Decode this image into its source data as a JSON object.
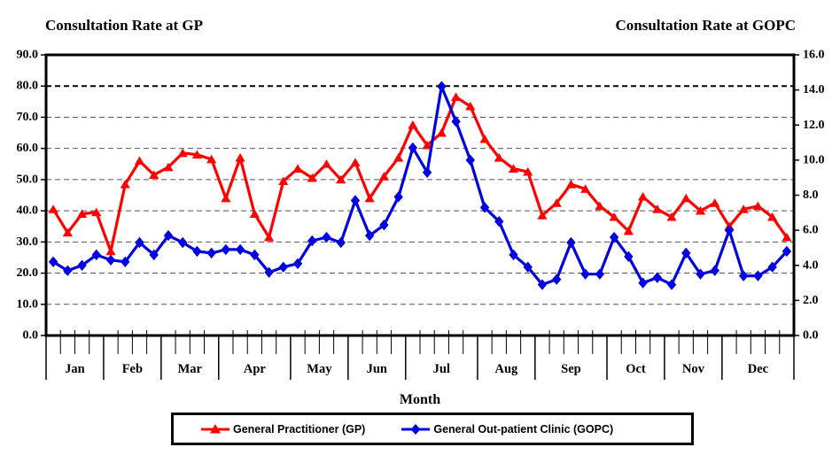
{
  "chart_data": {
    "type": "line",
    "title_left": "Consultation Rate at GP",
    "title_right": "Consultation Rate at GOPC",
    "xlabel": "Month",
    "x_unit": "week",
    "months": [
      {
        "label": "Jan",
        "weeks": 4
      },
      {
        "label": "Feb",
        "weeks": 4
      },
      {
        "label": "Mar",
        "weeks": 4
      },
      {
        "label": "Apr",
        "weeks": 5
      },
      {
        "label": "May",
        "weeks": 4
      },
      {
        "label": "Jun",
        "weeks": 4
      },
      {
        "label": "Jul",
        "weeks": 5
      },
      {
        "label": "Aug",
        "weeks": 4
      },
      {
        "label": "Sep",
        "weeks": 5
      },
      {
        "label": "Oct",
        "weeks": 4
      },
      {
        "label": "Nov",
        "weeks": 4
      },
      {
        "label": "Dec",
        "weeks": 5
      }
    ],
    "left_axis": {
      "min": 0,
      "max": 90,
      "step": 10,
      "tick_labels": [
        "0.0",
        "10.0",
        "20.0",
        "30.0",
        "40.0",
        "50.0",
        "60.0",
        "70.0",
        "80.0",
        "90.0"
      ]
    },
    "right_axis": {
      "min": 0,
      "max": 16,
      "step": 2,
      "tick_labels": [
        "0.0",
        "2.0",
        "4.0",
        "6.0",
        "8.0",
        "10.0",
        "12.0",
        "14.0",
        "16.0"
      ]
    },
    "gridlines": {
      "values": [
        10,
        20,
        30,
        40,
        50,
        60,
        70,
        80
      ],
      "emphasized": 80,
      "color": "#555555",
      "emphasized_color": "#000000"
    },
    "frame_color": "#000000",
    "legend_position": "bottom",
    "series": [
      {
        "name": "General Practitioner (GP)",
        "axis": "left",
        "color": "#FF0000",
        "marker": "triangle",
        "values": [
          40.5,
          33,
          39,
          39.5,
          27,
          48.5,
          56,
          51.5,
          54,
          58.5,
          58,
          56.5,
          44,
          57,
          39,
          31.5,
          49.5,
          53.5,
          50.5,
          55,
          50,
          55.5,
          44,
          51,
          57,
          67.5,
          61,
          65,
          76.5,
          73.5,
          63,
          57,
          53.5,
          52.5,
          38.5,
          42.5,
          48.5,
          47,
          41.5,
          38,
          33.5,
          44.5,
          40.5,
          38,
          44,
          40,
          42.5,
          35,
          40.5,
          41.5,
          38,
          31.5
        ]
      },
      {
        "name": "General Out-patient Clinic (GOPC)",
        "axis": "right",
        "color": "#0000E0",
        "marker": "diamond",
        "values": [
          4.2,
          3.7,
          4.0,
          4.6,
          4.3,
          4.2,
          5.3,
          4.6,
          5.7,
          5.3,
          4.8,
          4.7,
          4.9,
          4.9,
          4.6,
          3.6,
          3.9,
          4.1,
          5.4,
          5.6,
          5.3,
          7.7,
          5.7,
          6.3,
          7.9,
          10.7,
          9.3,
          14.2,
          12.2,
          10.0,
          7.3,
          6.5,
          4.6,
          3.9,
          2.9,
          3.2,
          5.3,
          3.5,
          3.5,
          5.6,
          4.5,
          3.0,
          3.3,
          2.9,
          4.7,
          3.5,
          3.7,
          6.0,
          3.4,
          3.4,
          3.9,
          4.8
        ]
      }
    ]
  }
}
